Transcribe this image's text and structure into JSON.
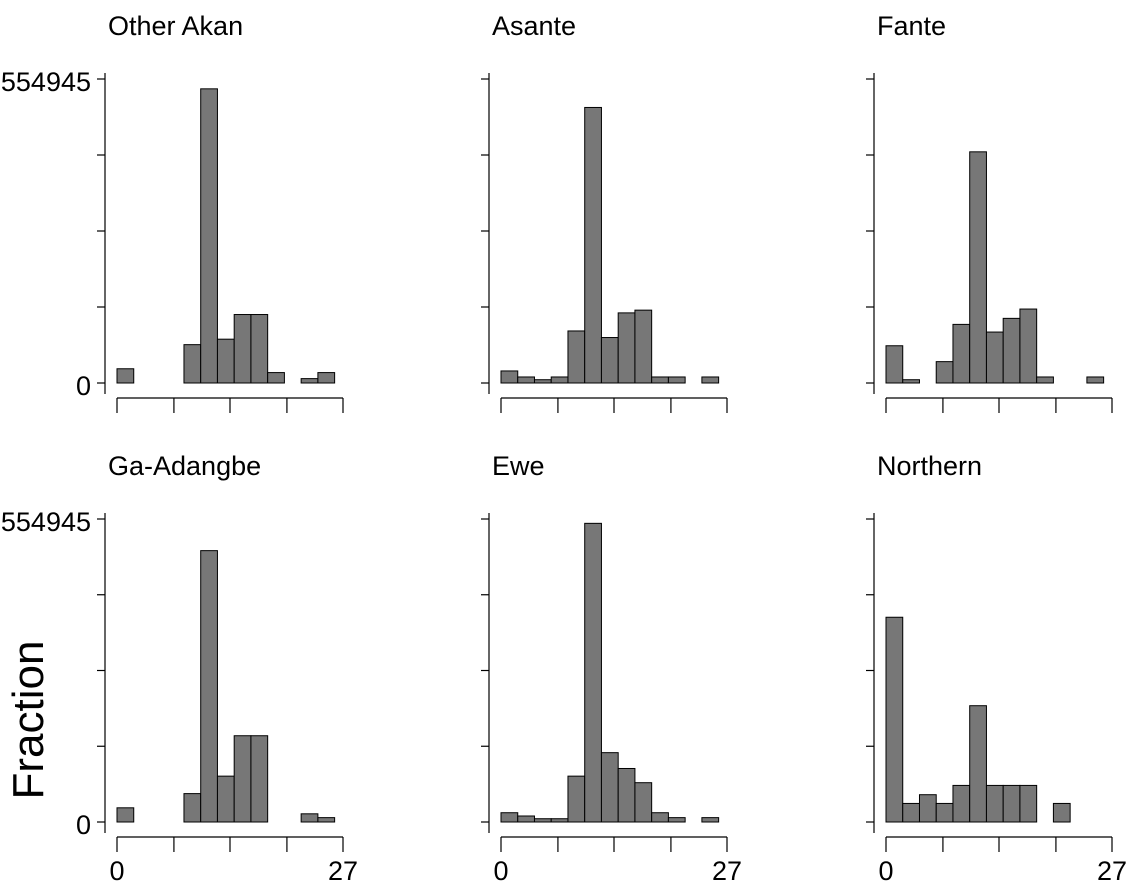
{
  "chart_data": {
    "type": "bar",
    "ylabel": "Fraction",
    "ylim": [
      0,
      554945
    ],
    "y_tick_labels": [
      "0",
      "554945"
    ],
    "xlim": [
      0,
      27
    ],
    "x_tick_labels": [
      "0",
      "27"
    ],
    "bin_width": 2,
    "bin_starts": [
      0,
      2,
      4,
      6,
      8,
      10,
      12,
      14,
      16,
      18,
      20,
      22,
      24
    ],
    "bar_color": "#777777",
    "panels": [
      {
        "name": "Other Akan",
        "values": [
          26000,
          0,
          0,
          0,
          70000,
          537000,
          80000,
          125000,
          125000,
          19000,
          0,
          8000,
          19000
        ]
      },
      {
        "name": "Asante",
        "values": [
          22000,
          11000,
          6000,
          11000,
          95000,
          503000,
          83000,
          128000,
          133000,
          11000,
          11000,
          0,
          11000
        ]
      },
      {
        "name": "Fante",
        "values": [
          68000,
          6000,
          0,
          39000,
          107000,
          422000,
          93000,
          118000,
          135000,
          11000,
          0,
          0,
          11000
        ]
      },
      {
        "name": "Ga-Adangbe",
        "values": [
          26000,
          0,
          0,
          0,
          52000,
          497000,
          84000,
          158000,
          158000,
          0,
          0,
          15000,
          8000
        ]
      },
      {
        "name": "Ewe",
        "values": [
          17000,
          11000,
          6000,
          6000,
          84000,
          547000,
          127000,
          98000,
          72000,
          17000,
          8000,
          0,
          8000
        ]
      },
      {
        "name": "Northern",
        "values": [
          375000,
          34000,
          50000,
          34000,
          67000,
          213000,
          67000,
          67000,
          67000,
          0,
          34000,
          0,
          0
        ]
      }
    ]
  }
}
